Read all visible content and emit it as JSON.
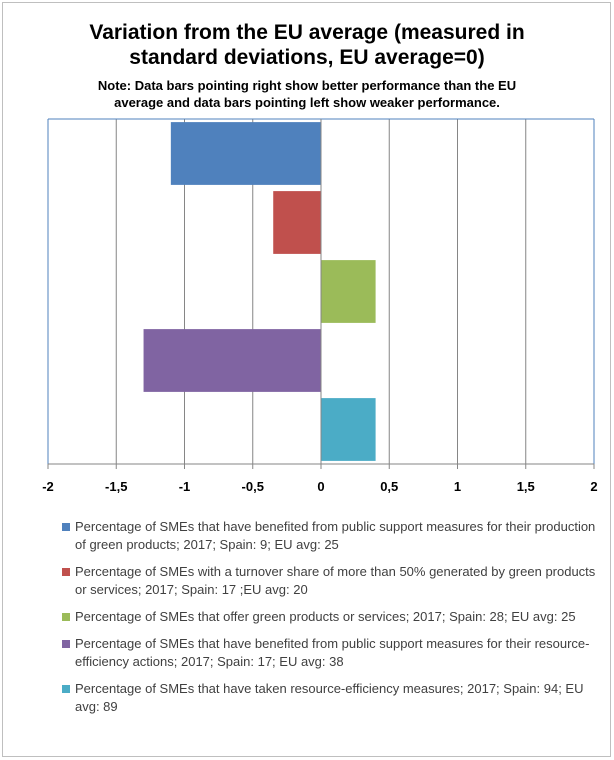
{
  "title_lines": [
    "Variation from the EU average (measured in",
    "standard deviations, EU average=0)"
  ],
  "note_lines": [
    "Note: Data bars pointing right show better performance than the EU",
    "average and data bars pointing left show weaker performance."
  ],
  "chart_data": {
    "type": "bar",
    "orientation": "horizontal",
    "xlim": [
      -2,
      2
    ],
    "x_ticks": [
      "-2",
      "-1,5",
      "-1",
      "-0,5",
      "0",
      "0,5",
      "1",
      "1,5",
      "2"
    ],
    "x_tick_values": [
      -2,
      -1.5,
      -1,
      -0.5,
      0,
      0.5,
      1,
      1.5,
      2
    ],
    "grid": true,
    "legend_position": "bottom",
    "series": [
      {
        "name": "Percentage of SMEs that have benefited from public support measures for their production of green products; 2017; Spain: 9; EU avg: 25",
        "value": -1.1,
        "color": "#4f81bd"
      },
      {
        "name": "Percentage of SMEs with a turnover share of more than 50% generated by green products or services; 2017; Spain: 17 ;EU avg: 20",
        "value": -0.35,
        "color": "#c0504d"
      },
      {
        "name": "Percentage of SMEs that offer green products or services; 2017; Spain: 28; EU avg: 25",
        "value": 0.4,
        "color": "#9bbb59"
      },
      {
        "name": "Percentage of SMEs that have benefited from public support measures for their resource- efficiency actions; 2017; Spain: 17; EU avg: 38",
        "value": -1.3,
        "color": "#8064a2"
      },
      {
        "name": "Percentage of SMEs that have taken resource-efficiency measures; 2017; Spain: 94; EU avg: 89",
        "value": 0.4,
        "color": "#4bacc6"
      }
    ]
  }
}
